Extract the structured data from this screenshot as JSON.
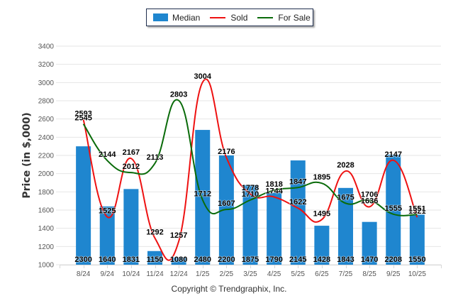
{
  "chart_data": {
    "type": "bar",
    "title": "",
    "xlabel": "",
    "ylabel": "Price (in $,000)",
    "ylim": [
      1000,
      3400
    ],
    "ytick_step": 200,
    "grid": true,
    "legend_position": "top-center",
    "categories": [
      "8/24",
      "9/24",
      "10/24",
      "11/24",
      "12/24",
      "1/25",
      "2/25",
      "3/25",
      "4/25",
      "5/25",
      "6/25",
      "7/25",
      "8/25",
      "9/25",
      "10/25"
    ],
    "series": [
      {
        "name": "Median",
        "type": "bar",
        "color": "#1f86cf",
        "values": [
          2300,
          1640,
          1831,
          1150,
          1080,
          2480,
          2200,
          1875,
          1790,
          2145,
          1428,
          1843,
          1470,
          2208,
          1550
        ]
      },
      {
        "name": "Sold",
        "type": "line",
        "color": "#ee1111",
        "values": [
          2593,
          1525,
          2167,
          1292,
          1257,
          3004,
          2176,
          1778,
          1744,
          1622,
          1495,
          2028,
          1636,
          2147,
          1521
        ]
      },
      {
        "name": "For Sale",
        "type": "line",
        "color": "#0a6b0a",
        "values": [
          2545,
          2144,
          2012,
          2113,
          2803,
          1712,
          1607,
          1710,
          1818,
          1847,
          1895,
          1675,
          1706,
          1555,
          1551
        ]
      }
    ]
  },
  "legend": {
    "items": [
      {
        "label": "Median"
      },
      {
        "label": "Sold"
      },
      {
        "label": "For Sale"
      }
    ]
  },
  "footer": {
    "copyright": "Copyright © Trendgraphix, Inc."
  }
}
